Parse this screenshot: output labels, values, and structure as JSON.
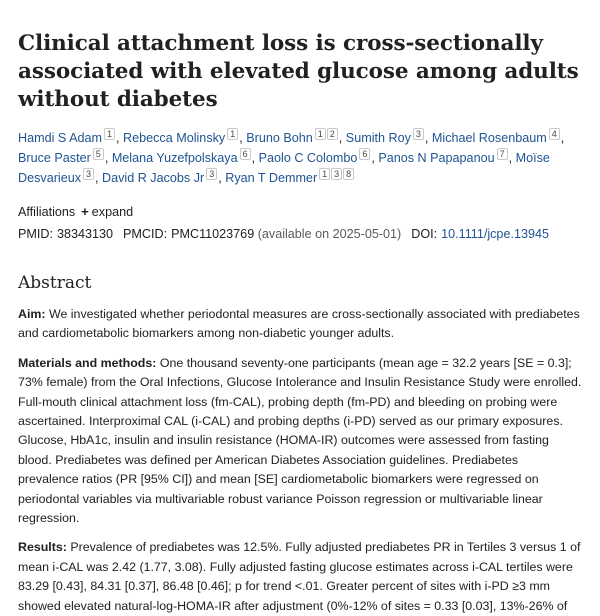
{
  "article": {
    "title": "Clinical attachment loss is cross-sectionally associated with elevated glucose among adults without diabetes",
    "authors": [
      {
        "name": "Hamdi S Adam",
        "affs": [
          "1"
        ]
      },
      {
        "name": "Rebecca Molinsky",
        "affs": [
          "1"
        ]
      },
      {
        "name": "Bruno Bohn",
        "affs": [
          "1",
          "2"
        ]
      },
      {
        "name": "Sumith Roy",
        "affs": [
          "3"
        ]
      },
      {
        "name": "Michael Rosenbaum",
        "affs": [
          "4"
        ]
      },
      {
        "name": "Bruce Paster",
        "affs": [
          "5"
        ]
      },
      {
        "name": "Melana Yuzefpolskaya",
        "affs": [
          "6"
        ]
      },
      {
        "name": "Paolo C Colombo",
        "affs": [
          "6"
        ]
      },
      {
        "name": "Panos N Papapanou",
        "affs": [
          "7"
        ]
      },
      {
        "name": "Moïse Desvarieux",
        "affs": [
          "3"
        ]
      },
      {
        "name": "David R Jacobs Jr",
        "affs": [
          "3"
        ]
      },
      {
        "name": "Ryan T Demmer",
        "affs": [
          "1",
          "3",
          "8"
        ]
      }
    ],
    "affiliations_label": "Affiliations",
    "expand_label": "expand",
    "pmid_label": "PMID:",
    "pmid": "38343130",
    "pmcid_label": "PMCID:",
    "pmcid": "PMC11023769",
    "pmcid_note": "(available on 2025-05-01)",
    "doi_label": "DOI:",
    "doi": "10.1111/jcpe.13945"
  },
  "abstract": {
    "heading": "Abstract",
    "aim_label": "Aim:",
    "aim_text": " We investigated whether periodontal measures are cross-sectionally associated with prediabetes and cardiometabolic biomarkers among non-diabetic younger adults.",
    "methods_label": "Materials and methods:",
    "methods_text": " One thousand seventy-one participants (mean age = 32.2 years [SE = 0.3]; 73% female) from the Oral Infections, Glucose Intolerance and Insulin Resistance Study were enrolled. Full-mouth clinical attachment loss (fm-CAL), probing depth (fm-PD) and bleeding on probing were ascertained. Interproximal CAL (i-CAL) and probing depths (i-PD) served as our primary exposures. Glucose, HbA1c, insulin and insulin resistance (HOMA-IR) outcomes were assessed from fasting blood. Prediabetes was defined per American Diabetes Association guidelines. Prediabetes prevalence ratios (PR [95% CI]) and mean [SE] cardiometabolic biomarkers were regressed on periodontal variables via multivariable robust variance Poisson regression or multivariable linear regression.",
    "results_label": "Results:",
    "results_text": " Prevalence of prediabetes was 12.5%. Fully adjusted prediabetes PR in Tertiles 3 versus 1 of mean i-CAL was 2.42 (1.77, 3.08). Fully adjusted fasting glucose estimates across i-CAL tertiles were 83.29 [0.43], 84.31 [0.37], 86.48 [0.46]; p for trend <.01. Greater percent of sites with i-PD ≥3 mm showed elevated natural-log-HOMA-IR after adjustment (0%-12% of sites = 0.33 [0.03], 13%-26% of"
  }
}
